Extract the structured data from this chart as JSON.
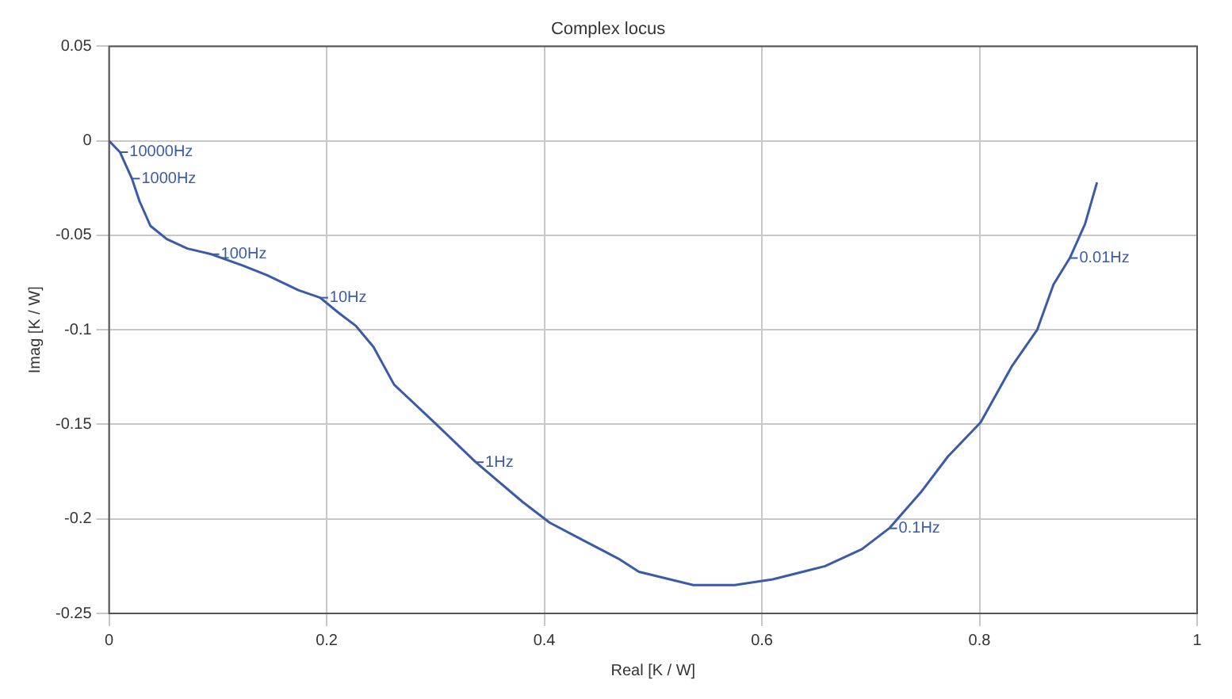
{
  "chart_data": {
    "type": "line",
    "title": "Complex locus",
    "xlabel": "Real [K / W]",
    "ylabel": "Imag [K / W]",
    "x": [
      0,
      0.01,
      0.021,
      0.028,
      0.038,
      0.053,
      0.072,
      0.094,
      0.123,
      0.145,
      0.174,
      0.194,
      0.211,
      0.227,
      0.243,
      0.262,
      0.299,
      0.337,
      0.38,
      0.405,
      0.438,
      0.468,
      0.487,
      0.537,
      0.575,
      0.61,
      0.658,
      0.692,
      0.717,
      0.746,
      0.771,
      0.801,
      0.83,
      0.853,
      0.868,
      0.883,
      0.897,
      0.908
    ],
    "series": [
      {
        "color": "#3a5ba8",
        "values": [
          0,
          -0.006,
          -0.02,
          -0.032,
          -0.045,
          -0.052,
          -0.057,
          -0.06,
          -0.066,
          -0.071,
          -0.079,
          -0.083,
          -0.091,
          -0.098,
          -0.109,
          -0.129,
          -0.149,
          -0.17,
          -0.191,
          -0.202,
          -0.212,
          -0.221,
          -0.228,
          -0.235,
          -0.235,
          -0.232,
          -0.225,
          -0.216,
          -0.205,
          -0.186,
          -0.167,
          -0.149,
          -0.119,
          -0.1,
          -0.076,
          -0.062,
          -0.044,
          -0.022
        ]
      }
    ],
    "xlim": [
      0,
      1
    ],
    "xticks": [
      0,
      0.2,
      0.4,
      0.6,
      0.8,
      1
    ],
    "ylim": [
      -0.25,
      0.05
    ],
    "yticks": [
      -0.25,
      -0.2,
      -0.15,
      -0.1,
      -0.05,
      0,
      0.05
    ],
    "grid": true,
    "legend": false,
    "marker": "none",
    "line_style": "solid",
    "annotations": [
      {
        "text": "10000Hz",
        "x": 0.01,
        "y": -0.006
      },
      {
        "text": "1000Hz",
        "x": 0.021,
        "y": -0.02
      },
      {
        "text": "100Hz",
        "x": 0.094,
        "y": -0.06
      },
      {
        "text": "10Hz",
        "x": 0.194,
        "y": -0.083
      },
      {
        "text": "1Hz",
        "x": 0.337,
        "y": -0.17
      },
      {
        "text": "0.1Hz",
        "x": 0.717,
        "y": -0.205
      },
      {
        "text": "0.01Hz",
        "x": 0.883,
        "y": -0.062
      }
    ]
  }
}
